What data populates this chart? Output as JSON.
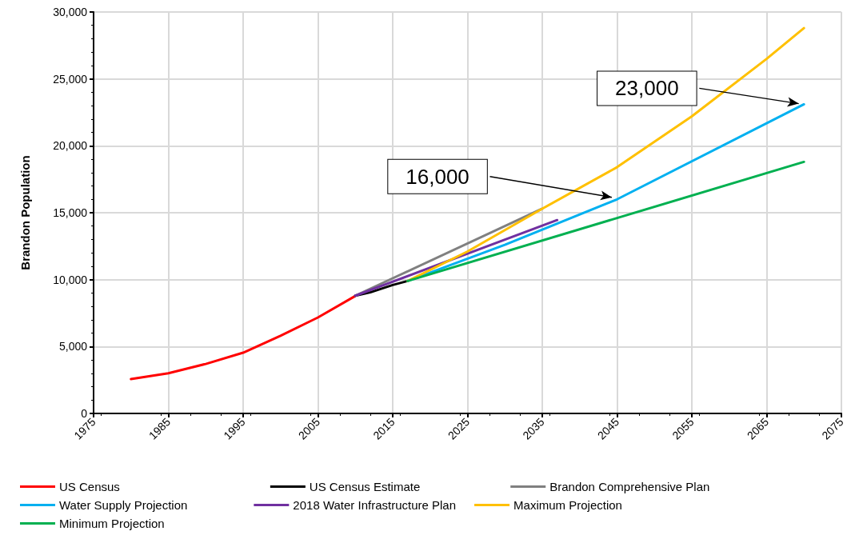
{
  "chart_data": {
    "type": "line",
    "ylabel": "Brandon Population",
    "xlim": [
      1975,
      2075
    ],
    "xticks": [
      1975,
      1985,
      1995,
      2005,
      2015,
      2025,
      2035,
      2045,
      2055,
      2065,
      2075
    ],
    "ylim": [
      0,
      30000
    ],
    "yticks": [
      {
        "value": 0,
        "label": "0"
      },
      {
        "value": 5000,
        "label": "5,000"
      },
      {
        "value": 10000,
        "label": "10,000"
      },
      {
        "value": 15000,
        "label": "15,000"
      },
      {
        "value": 20000,
        "label": "20,000"
      },
      {
        "value": 25000,
        "label": "25,000"
      },
      {
        "value": 30000,
        "label": "30,000"
      }
    ],
    "grid": true,
    "legend": "bottom",
    "marker": "none",
    "line_style": "solid",
    "series": [
      {
        "name": "US Census",
        "color": "#ff0000",
        "x": [
          1980,
          1985,
          1990,
          1995,
          2000,
          2005,
          2010
        ],
        "values": [
          2570,
          3000,
          3700,
          4540,
          5800,
          7170,
          8780
        ]
      },
      {
        "name": "US Census Estimate",
        "color": "#000000",
        "x": [
          2010,
          2012,
          2015,
          2017
        ],
        "values": [
          8800,
          9050,
          9600,
          9900
        ]
      },
      {
        "name": "Brandon Comprehensive Plan",
        "color": "#808080",
        "x": [
          2010,
          2035
        ],
        "values": [
          8800,
          15300
        ]
      },
      {
        "name": "Water Supply Projection",
        "color": "#00b0f0",
        "x": [
          2017,
          2030,
          2045,
          2070
        ],
        "values": [
          9900,
          12600,
          16000,
          23100
        ]
      },
      {
        "name": "2018 Water Infrastructure Plan",
        "color": "#7030a0",
        "x": [
          2010,
          2037
        ],
        "values": [
          8800,
          14450
        ]
      },
      {
        "name": "Maximum Projection",
        "color": "#ffc000",
        "x": [
          2017,
          2025,
          2035,
          2045,
          2055,
          2065,
          2070
        ],
        "values": [
          9900,
          12100,
          15300,
          18400,
          22200,
          26500,
          28800
        ]
      },
      {
        "name": "Minimum Projection",
        "color": "#00b050",
        "x": [
          2017,
          2070
        ],
        "values": [
          9900,
          18800
        ]
      }
    ],
    "annotations": [
      {
        "text": "16,000",
        "x": 2045,
        "y": 16000
      },
      {
        "text": "23,000",
        "x": 2070,
        "y": 23000
      }
    ]
  }
}
